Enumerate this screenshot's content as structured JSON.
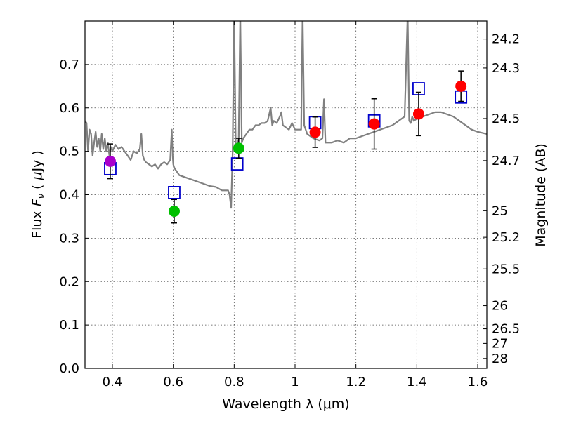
{
  "chart_data": {
    "type": "scatter",
    "xlabel": "Wavelength  λ (μm)",
    "ylabel": "Flux  F_ν  ( μJy )",
    "ylabel_right": "Magnitude (AB)",
    "xlim": [
      0.31,
      1.63
    ],
    "ylim": [
      0.0,
      0.8
    ],
    "x_ticks": [
      0.4,
      0.6,
      0.8,
      1.0,
      1.2,
      1.4,
      1.6
    ],
    "x_tick_labels": [
      "0.4",
      "0.6",
      "0.8",
      "1",
      "1.2",
      "1.4",
      "1.6"
    ],
    "y_ticks": [
      0.0,
      0.1,
      0.2,
      0.3,
      0.4,
      0.5,
      0.6,
      0.7
    ],
    "y_tick_labels": [
      "0.0",
      "0.1",
      "0.2",
      "0.3",
      "0.4",
      "0.5",
      "0.6",
      "0.7"
    ],
    "grid": true,
    "right_axis_magnitudes": [
      "24.2",
      "24.3",
      "24.5",
      "24.7",
      "25",
      "25.2",
      "25.5",
      "26",
      "26.5",
      "27",
      "28"
    ],
    "observed": [
      {
        "x": 0.393,
        "y": 0.477,
        "err": 0.04,
        "color": "#aa00cc"
      },
      {
        "x": 0.603,
        "y": 0.362,
        "err": 0.027,
        "color": "#00c000"
      },
      {
        "x": 0.815,
        "y": 0.507,
        "err": 0.023,
        "color": "#00c000"
      },
      {
        "x": 1.066,
        "y": 0.544,
        "err": 0.035,
        "color": "#ff0000"
      },
      {
        "x": 1.26,
        "y": 0.563,
        "err": 0.058,
        "color": "#ff0000"
      },
      {
        "x": 1.406,
        "y": 0.586,
        "err": 0.05,
        "color": "#ff0000"
      },
      {
        "x": 1.545,
        "y": 0.65,
        "err": 0.035,
        "color": "#ff0000"
      }
    ],
    "model_photometry": {
      "color": "#0000cc",
      "points": [
        {
          "x": 0.393,
          "y": 0.46
        },
        {
          "x": 0.603,
          "y": 0.405
        },
        {
          "x": 0.81,
          "y": 0.471
        },
        {
          "x": 1.066,
          "y": 0.566
        },
        {
          "x": 1.26,
          "y": 0.57
        },
        {
          "x": 1.406,
          "y": 0.644
        },
        {
          "x": 1.545,
          "y": 0.625
        }
      ]
    },
    "sed_model": {
      "color": "#808080",
      "x": [
        0.31,
        0.315,
        0.32,
        0.325,
        0.33,
        0.335,
        0.34,
        0.345,
        0.35,
        0.355,
        0.36,
        0.365,
        0.37,
        0.375,
        0.38,
        0.385,
        0.39,
        0.395,
        0.4,
        0.41,
        0.42,
        0.43,
        0.44,
        0.45,
        0.46,
        0.47,
        0.48,
        0.49,
        0.495,
        0.5,
        0.505,
        0.51,
        0.52,
        0.53,
        0.54,
        0.55,
        0.56,
        0.57,
        0.58,
        0.59,
        0.595,
        0.598,
        0.6,
        0.602,
        0.605,
        0.61,
        0.62,
        0.64,
        0.66,
        0.68,
        0.7,
        0.72,
        0.74,
        0.76,
        0.77,
        0.78,
        0.785,
        0.79,
        0.795,
        0.8,
        0.805,
        0.81,
        0.815,
        0.82,
        0.825,
        0.83,
        0.84,
        0.85,
        0.86,
        0.87,
        0.88,
        0.89,
        0.9,
        0.91,
        0.92,
        0.925,
        0.93,
        0.94,
        0.95,
        0.955,
        0.96,
        0.97,
        0.98,
        0.99,
        1.0,
        1.01,
        1.02,
        1.025,
        1.03,
        1.035,
        1.04,
        1.06,
        1.08,
        1.09,
        1.095,
        1.1,
        1.12,
        1.14,
        1.16,
        1.18,
        1.2,
        1.22,
        1.24,
        1.26,
        1.28,
        1.3,
        1.32,
        1.34,
        1.36,
        1.37,
        1.375,
        1.38,
        1.385,
        1.39,
        1.4,
        1.42,
        1.44,
        1.46,
        1.48,
        1.5,
        1.52,
        1.54,
        1.56,
        1.58,
        1.6,
        1.63
      ],
      "y": [
        0.57,
        0.565,
        0.5,
        0.55,
        0.54,
        0.49,
        0.52,
        0.545,
        0.51,
        0.53,
        0.5,
        0.54,
        0.505,
        0.53,
        0.5,
        0.52,
        0.49,
        0.51,
        0.5,
        0.515,
        0.505,
        0.51,
        0.5,
        0.49,
        0.48,
        0.5,
        0.495,
        0.505,
        0.54,
        0.49,
        0.48,
        0.475,
        0.47,
        0.465,
        0.47,
        0.46,
        0.47,
        0.475,
        0.47,
        0.48,
        0.55,
        0.49,
        0.47,
        0.465,
        0.46,
        0.455,
        0.445,
        0.44,
        0.435,
        0.43,
        0.425,
        0.42,
        0.418,
        0.41,
        0.41,
        0.41,
        0.4,
        0.37,
        0.5,
        0.82,
        0.52,
        0.51,
        0.53,
        0.82,
        0.52,
        0.53,
        0.54,
        0.55,
        0.55,
        0.56,
        0.56,
        0.565,
        0.565,
        0.57,
        0.6,
        0.56,
        0.57,
        0.565,
        0.58,
        0.59,
        0.56,
        0.555,
        0.55,
        0.565,
        0.55,
        0.55,
        0.55,
        0.82,
        0.56,
        0.55,
        0.54,
        0.53,
        0.525,
        0.53,
        0.62,
        0.52,
        0.52,
        0.525,
        0.52,
        0.53,
        0.53,
        0.535,
        0.54,
        0.545,
        0.55,
        0.555,
        0.56,
        0.57,
        0.58,
        0.82,
        0.57,
        0.565,
        0.58,
        0.57,
        0.575,
        0.58,
        0.585,
        0.59,
        0.59,
        0.585,
        0.58,
        0.57,
        0.56,
        0.55,
        0.545,
        0.54
      ]
    }
  }
}
